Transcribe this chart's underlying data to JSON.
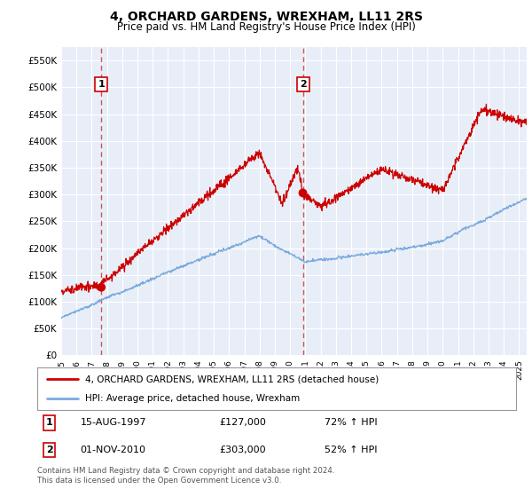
{
  "title": "4, ORCHARD GARDENS, WREXHAM, LL11 2RS",
  "subtitle": "Price paid vs. HM Land Registry's House Price Index (HPI)",
  "ylim": [
    0,
    575000
  ],
  "yticks": [
    0,
    50000,
    100000,
    150000,
    200000,
    250000,
    300000,
    350000,
    400000,
    450000,
    500000,
    550000
  ],
  "xlim_start": 1995.0,
  "xlim_end": 2025.5,
  "sale1_year": 1997.625,
  "sale1_price": 127000,
  "sale2_year": 2010.833,
  "sale2_price": 303000,
  "sale1_date": "15-AUG-1997",
  "sale1_hpi": "72%",
  "sale2_date": "01-NOV-2010",
  "sale2_hpi": "52%",
  "line_color_property": "#cc0000",
  "line_color_hpi": "#7aaadd",
  "dashed_color": "#cc4444",
  "background_color": "#e8eef8",
  "grid_color": "#ffffff",
  "legend_label_property": "4, ORCHARD GARDENS, WREXHAM, LL11 2RS (detached house)",
  "legend_label_hpi": "HPI: Average price, detached house, Wrexham",
  "footer": "Contains HM Land Registry data © Crown copyright and database right 2024.\nThis data is licensed under the Open Government Licence v3.0.",
  "xtick_years": [
    1995,
    1996,
    1997,
    1998,
    1999,
    2000,
    2001,
    2002,
    2003,
    2004,
    2005,
    2006,
    2007,
    2008,
    2009,
    2010,
    2011,
    2012,
    2013,
    2014,
    2015,
    2016,
    2017,
    2018,
    2019,
    2020,
    2021,
    2022,
    2023,
    2024,
    2025
  ]
}
